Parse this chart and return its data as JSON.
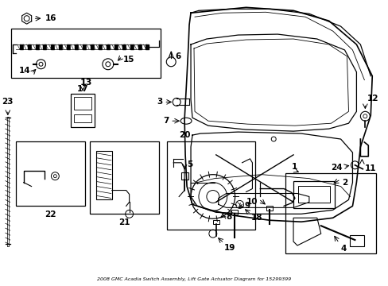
{
  "title": "2008 GMC Acadia Switch Assembly, Lift Gate Actuator Diagram for 15299399",
  "bg_color": "#ffffff",
  "line_color": "#000000",
  "font_size": 7.5
}
